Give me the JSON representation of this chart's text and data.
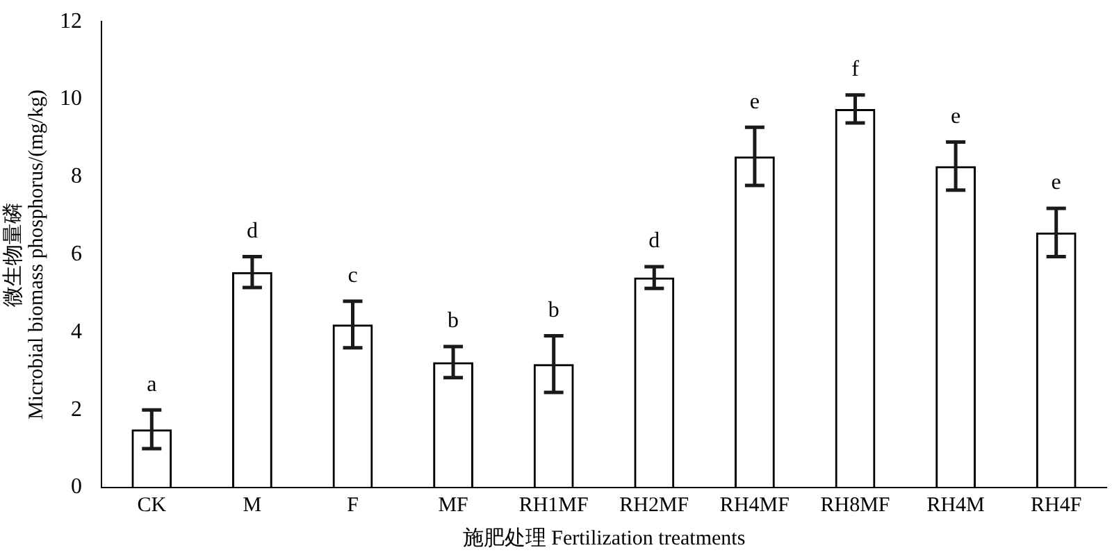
{
  "chart_data": {
    "type": "bar",
    "xlabel": "施肥处理 Fertilization treatments",
    "ylabel": "微生物量磷\nMicrobial biomass phosphorus/(mg/kg)",
    "categories": [
      "CK",
      "M",
      "F",
      "MF",
      "RH1MF",
      "RH2MF",
      "RH4MF",
      "RH8MF",
      "RH4M",
      "RH4F"
    ],
    "values": [
      1.5,
      5.55,
      4.2,
      3.23,
      3.18,
      5.41,
      8.53,
      9.75,
      8.28,
      6.57
    ],
    "errors": [
      0.5,
      0.4,
      0.6,
      0.4,
      0.73,
      0.28,
      0.75,
      0.36,
      0.62,
      0.62
    ],
    "color": "#000000",
    "ylim": [
      0,
      12
    ],
    "yticks": [
      0,
      2,
      4,
      6,
      8,
      10,
      12
    ],
    "grid": false,
    "legend": false,
    "annotations": [
      {
        "text": "a",
        "x": "CK",
        "y": 2.0
      },
      {
        "text": "d",
        "x": "M",
        "y": 5.95
      },
      {
        "text": "c",
        "x": "F",
        "y": 4.8
      },
      {
        "text": "b",
        "x": "MF",
        "y": 3.63
      },
      {
        "text": "b",
        "x": "RH1MF",
        "y": 3.91
      },
      {
        "text": "d",
        "x": "RH2MF",
        "y": 5.69
      },
      {
        "text": "e",
        "x": "RH4MF",
        "y": 9.28
      },
      {
        "text": "f",
        "x": "RH8MF",
        "y": 10.11
      },
      {
        "text": "e",
        "x": "RH4M",
        "y": 8.9
      },
      {
        "text": "e",
        "x": "RH4F",
        "y": 7.19
      }
    ]
  }
}
